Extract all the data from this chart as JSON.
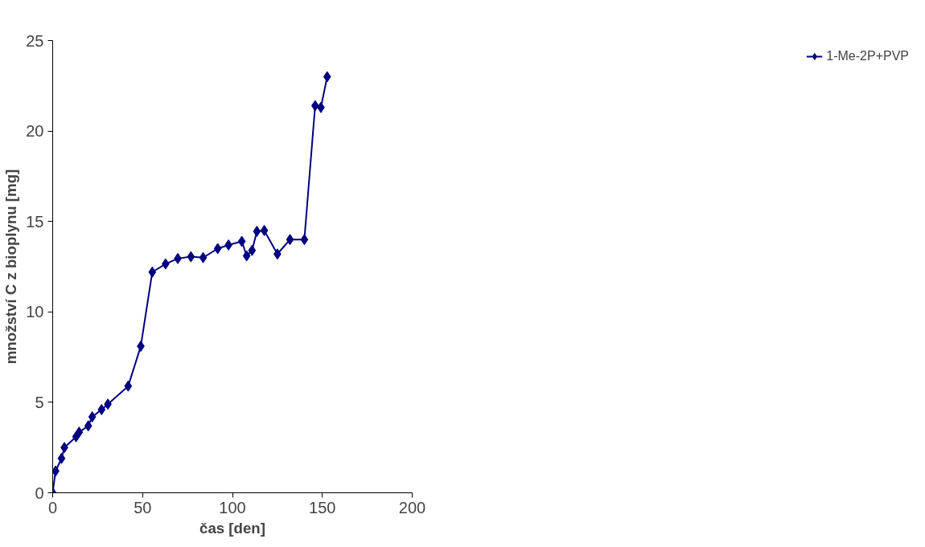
{
  "chart_data": {
    "type": "line",
    "xlabel": "čas [den]",
    "ylabel": "množství C z bioplynu [mg]",
    "x": [
      0,
      1.6,
      4.9,
      6.5,
      13,
      14.7,
      19.8,
      22,
      27.2,
      30.7,
      42,
      49,
      55.4,
      62.8,
      69.6,
      76.9,
      83.7,
      91.8,
      97.8,
      105.2,
      107.9,
      110.9,
      113.6,
      117.7,
      125,
      132,
      140,
      146,
      149.2,
      152.7
    ],
    "series": [
      {
        "name": "1-Me-2P+PVP",
        "color": "#000080",
        "values": [
          0,
          1.2,
          1.9,
          2.5,
          3.1,
          3.35,
          3.7,
          4.2,
          4.6,
          4.9,
          5.9,
          8.1,
          12.2,
          12.65,
          12.95,
          13.05,
          13.0,
          13.5,
          13.7,
          13.9,
          13.1,
          13.4,
          14.45,
          14.5,
          13.2,
          14.0,
          14.0,
          21.4,
          21.3,
          23.0
        ]
      }
    ],
    "xlim": [
      0,
      200
    ],
    "xticks": [
      0,
      50,
      100,
      150,
      200
    ],
    "ylim": [
      0,
      25
    ],
    "yticks": [
      0,
      5,
      10,
      15,
      20,
      25
    ],
    "grid": false,
    "legend": "right",
    "marker": "diamond",
    "line_style": "solid"
  }
}
